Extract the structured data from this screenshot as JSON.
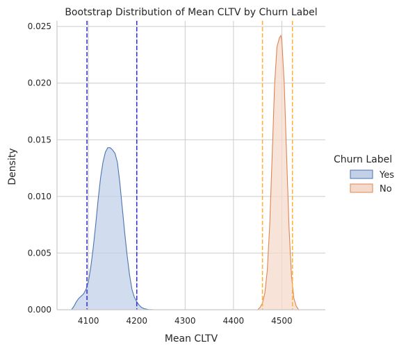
{
  "chart_data": {
    "type": "area",
    "title": "Bootstrap Distribution of Mean CLTV by Churn Label",
    "xlabel": "Mean CLTV",
    "ylabel": "Density",
    "xlim": [
      4035,
      4590
    ],
    "ylim": [
      0,
      0.0255
    ],
    "x_ticks": [
      4100,
      4200,
      4300,
      4400,
      4500
    ],
    "y_ticks": [
      0.0,
      0.005,
      0.01,
      0.015,
      0.02,
      0.025
    ],
    "x_tick_labels": [
      "4100",
      "4200",
      "4300",
      "4400",
      "4500"
    ],
    "y_tick_labels": [
      "0.000",
      "0.005",
      "0.010",
      "0.015",
      "0.020",
      "0.025"
    ],
    "grid": true,
    "legend": {
      "title": "Churn Label",
      "placement": "right",
      "entries": [
        {
          "label": "Yes",
          "color": "#4c72b0"
        },
        {
          "label": "No",
          "color": "#dd8452"
        }
      ]
    },
    "series": [
      {
        "name": "Yes",
        "line_color": "#4c72b0",
        "fill_color": "#c2d0e8",
        "x": [
          4065,
          4070,
          4075,
          4080,
          4085,
          4090,
          4095,
          4100,
          4105,
          4110,
          4115,
          4120,
          4125,
          4130,
          4135,
          4140,
          4145,
          4150,
          4155,
          4160,
          4165,
          4170,
          4175,
          4180,
          4185,
          4190,
          4195,
          4200,
          4205,
          4210,
          4215,
          4220,
          4225,
          4230,
          4235
        ],
        "y": [
          0.0,
          0.0003,
          0.0007,
          0.001,
          0.0012,
          0.0014,
          0.0018,
          0.0025,
          0.0038,
          0.0055,
          0.0075,
          0.0097,
          0.0116,
          0.013,
          0.0139,
          0.0143,
          0.0143,
          0.0141,
          0.0138,
          0.013,
          0.0112,
          0.009,
          0.0068,
          0.0048,
          0.0031,
          0.0018,
          0.0011,
          0.0007,
          0.0004,
          0.0002,
          0.0001,
          5e-05,
          2e-05,
          1e-05,
          0.0
        ]
      },
      {
        "name": "No",
        "line_color": "#dd8452",
        "fill_color": "#f5dacb",
        "x": [
          4450,
          4455,
          4460,
          4465,
          4470,
          4475,
          4480,
          4485,
          4490,
          4495,
          4498,
          4500,
          4505,
          4510,
          4515,
          4520,
          4525,
          4530,
          4535
        ],
        "y": [
          0.0,
          0.0002,
          0.0006,
          0.0015,
          0.0035,
          0.0075,
          0.0135,
          0.0198,
          0.0232,
          0.024,
          0.0242,
          0.0238,
          0.02,
          0.0135,
          0.0072,
          0.003,
          0.001,
          0.0003,
          0.0
        ]
      }
    ],
    "annotations": [
      {
        "type": "vline",
        "x": 4097,
        "color": "#3535d6",
        "style": "dashed",
        "series": "Yes"
      },
      {
        "type": "vline",
        "x": 4200,
        "color": "#3535d6",
        "style": "dashed",
        "series": "Yes"
      },
      {
        "type": "vline",
        "x": 4460,
        "color": "#ffb133",
        "style": "dashed",
        "series": "No"
      },
      {
        "type": "vline",
        "x": 4522,
        "color": "#ffb133",
        "style": "dashed",
        "series": "No"
      }
    ]
  }
}
